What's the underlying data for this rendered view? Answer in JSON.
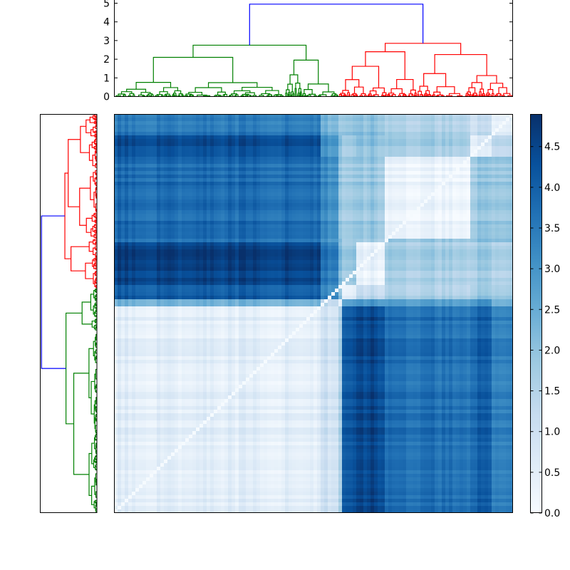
{
  "chart_data": [
    {
      "type": "dendrogram",
      "position": "top",
      "title": "",
      "xlabel": "",
      "ylabel": "",
      "ylim": [
        0,
        5.1
      ],
      "yticks": [
        "0",
        "1",
        "2",
        "3",
        "4",
        "5"
      ],
      "clusters": [
        {
          "name": "cluster-green",
          "color": "#008000",
          "x_range": [
            160,
            475
          ],
          "merge_height": 2.75
        },
        {
          "name": "cluster-red",
          "color": "#ff0000",
          "x_range": [
            475,
            720
          ],
          "merge_height": 2.85
        }
      ],
      "root": {
        "color": "#0000ff",
        "height": 4.95
      },
      "notable_merge_heights": {
        "green": [
          2.75,
          2.1,
          1.5,
          1.1,
          0.8,
          0.45
        ],
        "red": [
          2.85,
          2.4,
          1.85,
          1.6,
          1.05,
          0.6
        ]
      }
    },
    {
      "type": "dendrogram",
      "position": "left",
      "orientation": "horizontal",
      "clusters": [
        {
          "name": "cluster-red",
          "color": "#ff0000",
          "y_range": [
            160,
            405
          ]
        },
        {
          "name": "cluster-green",
          "color": "#008000",
          "y_range": [
            405,
            720
          ]
        }
      ],
      "root": {
        "color": "#0000ff"
      }
    },
    {
      "type": "heatmap",
      "title": "",
      "colormap": "Blues",
      "vmin": 0.0,
      "vmax": 4.9,
      "description": "Clustered distance matrix; rows ordered by left dendrogram (red cluster top, green cluster bottom), columns ordered by top dendrogram (green cluster left, red cluster right). Diagonal = 0.",
      "blocks": [
        {
          "rows": "red-top (y 160-335)",
          "cols": "green (x 160-450)",
          "approx_value": 3.9
        },
        {
          "rows": "red-mid (y 335-400)",
          "cols": "green (x 160-450)",
          "approx_value": 4.6
        },
        {
          "rows": "red",
          "cols": "red",
          "approx_value": 1.3
        },
        {
          "rows": "green",
          "cols": "green",
          "approx_value": 0.5
        },
        {
          "rows": "green",
          "cols": "red-left (x 478-545)",
          "approx_value": 4.3
        },
        {
          "rows": "green",
          "cols": "red-right (x 545-720)",
          "approx_value": 3.7
        }
      ]
    },
    {
      "type": "colorbar",
      "range": [
        0.0,
        4.9
      ],
      "ticks": [
        "0.0",
        "0.5",
        "1.0",
        "1.5",
        "2.0",
        "2.5",
        "3.0",
        "3.5",
        "4.0",
        "4.5"
      ]
    }
  ],
  "top_dendro": {
    "yticks": [
      {
        "label": "0",
        "v": 0
      },
      {
        "label": "1",
        "v": 1
      },
      {
        "label": "2",
        "v": 2
      },
      {
        "label": "3",
        "v": 3
      },
      {
        "label": "4",
        "v": 4
      },
      {
        "label": "5",
        "v": 5
      }
    ]
  },
  "colorbar": {
    "ticks": [
      {
        "label": "0.0",
        "v": 0.0
      },
      {
        "label": "0.5",
        "v": 0.5
      },
      {
        "label": "1.0",
        "v": 1.0
      },
      {
        "label": "1.5",
        "v": 1.5
      },
      {
        "label": "2.0",
        "v": 2.0
      },
      {
        "label": "2.5",
        "v": 2.5
      },
      {
        "label": "3.0",
        "v": 3.0
      },
      {
        "label": "3.5",
        "v": 3.5
      },
      {
        "label": "4.0",
        "v": 4.0
      },
      {
        "label": "4.5",
        "v": 4.5
      }
    ]
  },
  "colors": {
    "green": "#008000",
    "red": "#ff0000",
    "blue": "#0000ff",
    "cmap_low": "#f7fbff",
    "cmap_high": "#08306b"
  }
}
